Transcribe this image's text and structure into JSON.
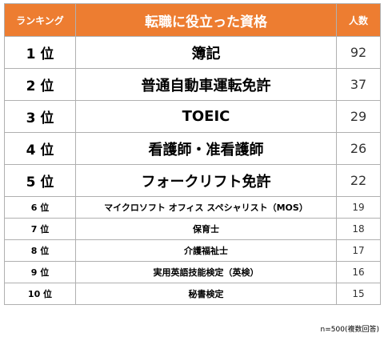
{
  "header": {
    "rank_label": "ランキング",
    "title": "転職に役立った資格",
    "count_label": "人数"
  },
  "rows": [
    {
      "rank": "1 位",
      "name": "簿記",
      "count": "92"
    },
    {
      "rank": "2 位",
      "name": "普通自動車運転免許",
      "count": "37"
    },
    {
      "rank": "3 位",
      "name": "TOEIC",
      "count": "29"
    },
    {
      "rank": "4 位",
      "name": "看護師・准看護師",
      "count": "26"
    },
    {
      "rank": "5 位",
      "name": "フォークリフト免許",
      "count": "22"
    },
    {
      "rank": "6 位",
      "name": "マイクロソフト オフィス スペシャリスト（MOS）",
      "count": "19"
    },
    {
      "rank": "7 位",
      "name": "保育士",
      "count": "18"
    },
    {
      "rank": "8 位",
      "name": "介護福祉士",
      "count": "17"
    },
    {
      "rank": "9 位",
      "name": "実用英語技能検定（英検）",
      "count": "16"
    },
    {
      "rank": "10 位",
      "name": "秘書検定",
      "count": "15"
    }
  ],
  "footnote": "n=500(複数回答)",
  "colors": {
    "header_bg": "#ed7d31",
    "header_text": "#ffffff",
    "border": "#b0b0b0"
  }
}
